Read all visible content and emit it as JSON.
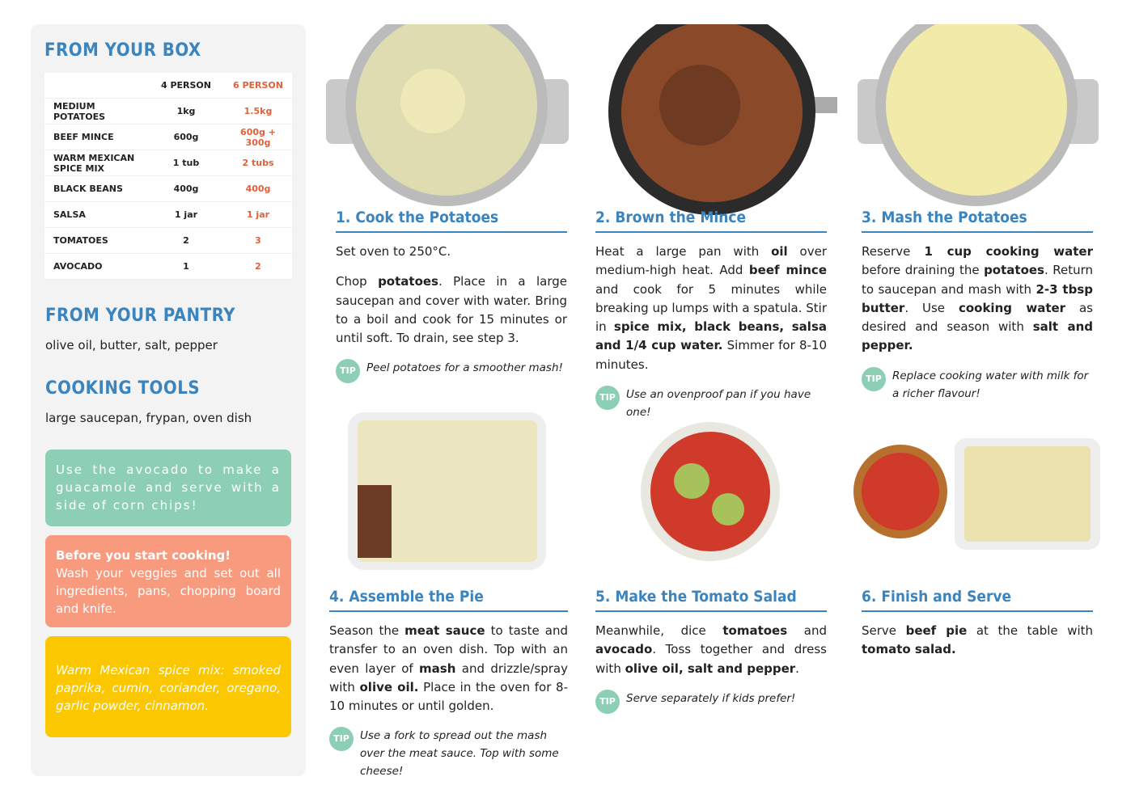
{
  "sidebar": {
    "from_box": {
      "title": "FROM YOUR BOX",
      "columns": [
        "4 PERSON",
        "6 PERSON"
      ],
      "rows": [
        [
          "MEDIUM POTATOES",
          "1kg",
          "1.5kg"
        ],
        [
          "BEEF MINCE",
          "600g",
          "600g + 300g"
        ],
        [
          "WARM MEXICAN SPICE MIX",
          "1 tub",
          "2 tubs"
        ],
        [
          "BLACK BEANS",
          "400g",
          "400g"
        ],
        [
          "SALSA",
          "1 jar",
          "1 jar"
        ],
        [
          "TOMATOES",
          "2",
          "3"
        ],
        [
          "AVOCADO",
          "1",
          "2"
        ]
      ]
    },
    "pantry": {
      "title": "FROM YOUR PANTRY",
      "text": "olive oil, butter, salt, pepper"
    },
    "tools": {
      "title": "COOKING TOOLS",
      "text": "large saucepan, frypan, oven dish"
    },
    "notes": [
      {
        "text": "Use the avocado to make a guacamole and serve with a side of corn chips!"
      },
      {
        "heading": "Before you start cooking!",
        "text": "Wash your veggies and set out all ingredients, pans, chopping board and knife."
      },
      {
        "text": "Warm Mexican spice mix: smoked paprika, cumin, coriander, oregano, garlic powder, cinnamon."
      }
    ]
  },
  "tip_label": "TIP",
  "steps": [
    {
      "title": "1. Cook the Potatoes",
      "paragraphs": [
        [
          {
            "text": "Set oven to 250°C."
          }
        ],
        [
          {
            "text": "Chop "
          },
          {
            "text": "potatoes",
            "bold": true
          },
          {
            "text": ". Place in a large saucepan and cover with water. Bring to a boil and cook for 15 minutes or until soft. To drain, see step 3."
          }
        ]
      ],
      "tip": "Peel potatoes for a smoother mash!"
    },
    {
      "title": "2. Brown the Mince",
      "paragraphs": [
        [
          {
            "text": "Heat a large pan with "
          },
          {
            "text": "oil",
            "bold": true
          },
          {
            "text": " over medium-high heat. Add "
          },
          {
            "text": "beef mince",
            "bold": true
          },
          {
            "text": " and cook for 5 minutes while breaking up lumps with a spatula. Stir in "
          },
          {
            "text": "spice mix, black beans, salsa and 1/4 cup water.",
            "bold": true
          },
          {
            "text": " Simmer for 8-10 minutes."
          }
        ]
      ],
      "tip": "Use an ovenproof pan if you have one!"
    },
    {
      "title": "3. Mash the Potatoes",
      "paragraphs": [
        [
          {
            "text": "Reserve "
          },
          {
            "text": "1 cup cooking water",
            "bold": true
          },
          {
            "text": " before draining the "
          },
          {
            "text": "potatoes",
            "bold": true
          },
          {
            "text": ". Return to saucepan and mash with "
          },
          {
            "text": "2-3 tbsp butter",
            "bold": true
          },
          {
            "text": ". Use "
          },
          {
            "text": "cooking water",
            "bold": true
          },
          {
            "text": " as desired and season with "
          },
          {
            "text": "salt and pepper.",
            "bold": true
          }
        ]
      ],
      "tip": "Replace cooking water with milk for a richer flavour!"
    },
    {
      "title": "4. Assemble the Pie",
      "paragraphs": [
        [
          {
            "text": "Season the "
          },
          {
            "text": "meat sauce",
            "bold": true
          },
          {
            "text": " to taste and transfer to an oven dish. Top with an even layer of "
          },
          {
            "text": "mash",
            "bold": true
          },
          {
            "text": " and drizzle/spray with "
          },
          {
            "text": "olive oil.",
            "bold": true
          },
          {
            "text": " Place in the oven for 8-10 minutes or until golden."
          }
        ]
      ],
      "tip": "Use a fork to spread out the mash over the meat sauce. Top with some cheese!"
    },
    {
      "title": "5. Make the Tomato Salad",
      "paragraphs": [
        [
          {
            "text": "Meanwhile, dice "
          },
          {
            "text": "tomatoes",
            "bold": true
          },
          {
            "text": " and "
          },
          {
            "text": "avocado",
            "bold": true
          },
          {
            "text": ". Toss together and dress with "
          },
          {
            "text": "olive oil, salt and pepper",
            "bold": true
          },
          {
            "text": "."
          }
        ]
      ],
      "tip": "Serve separately if kids prefer!"
    },
    {
      "title": "6. Finish and Serve",
      "paragraphs": [
        [
          {
            "text": "Serve "
          },
          {
            "text": "beef pie",
            "bold": true
          },
          {
            "text": " at the table with "
          },
          {
            "text": "tomato salad.",
            "bold": true
          }
        ]
      ]
    }
  ]
}
